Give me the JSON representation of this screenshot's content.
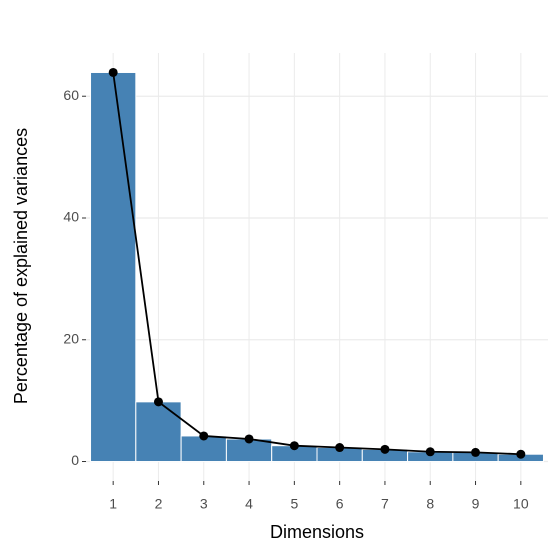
{
  "chart_data": {
    "type": "bar",
    "x_label": "Dimensions",
    "y_label": "Percentage of explained variances",
    "categories": [
      "1",
      "2",
      "3",
      "4",
      "5",
      "6",
      "7",
      "8",
      "9",
      "10"
    ],
    "values": [
      63.9,
      9.8,
      4.2,
      3.7,
      2.6,
      2.3,
      2.0,
      1.6,
      1.5,
      1.2
    ],
    "color": "#4682b4",
    "line": true,
    "line_color": "#000000",
    "ylim": [
      -3.2,
      67.1
    ],
    "yticks": [
      0,
      20,
      40,
      60
    ],
    "grid": true
  }
}
